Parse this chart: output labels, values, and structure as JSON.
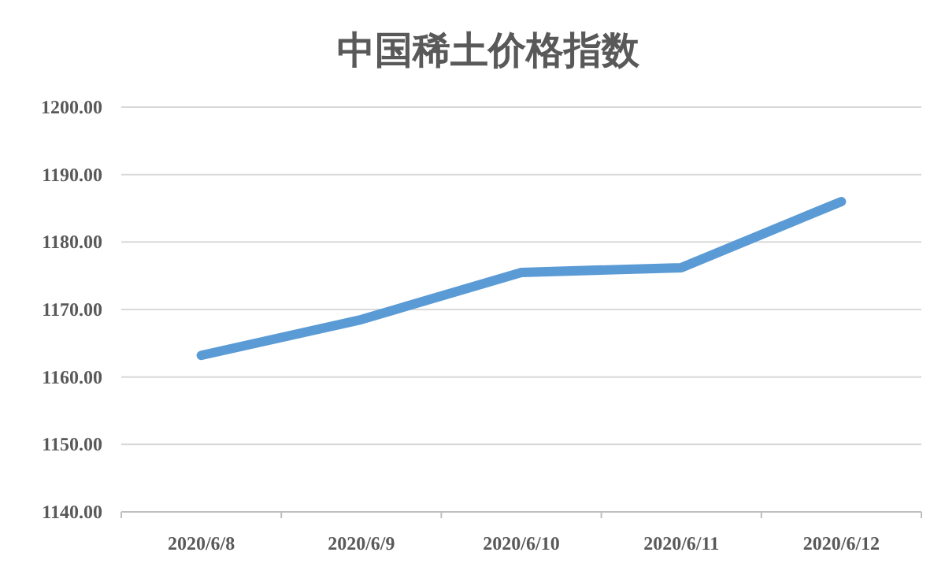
{
  "chart_data": {
    "type": "line",
    "title": "中国稀土价格指数",
    "categories": [
      "2020/6/8",
      "2020/6/9",
      "2020/6/10",
      "2020/6/11",
      "2020/6/12"
    ],
    "series": [
      {
        "color": "#5b9bd5",
        "values": [
          1163.2,
          1168.5,
          1175.5,
          1176.2,
          1186.0
        ]
      }
    ],
    "ylim": [
      1140,
      1200
    ],
    "yticks": [
      {
        "value": 1140,
        "label": "1140.00"
      },
      {
        "value": 1150,
        "label": "1150.00"
      },
      {
        "value": 1160,
        "label": "1160.00"
      },
      {
        "value": 1170,
        "label": "1170.00"
      },
      {
        "value": 1180,
        "label": "1180.00"
      },
      {
        "value": 1190,
        "label": "1190.00"
      },
      {
        "value": 1200,
        "label": "1200.00"
      }
    ],
    "grid": "y",
    "marker": "none",
    "line_style": "solid"
  }
}
